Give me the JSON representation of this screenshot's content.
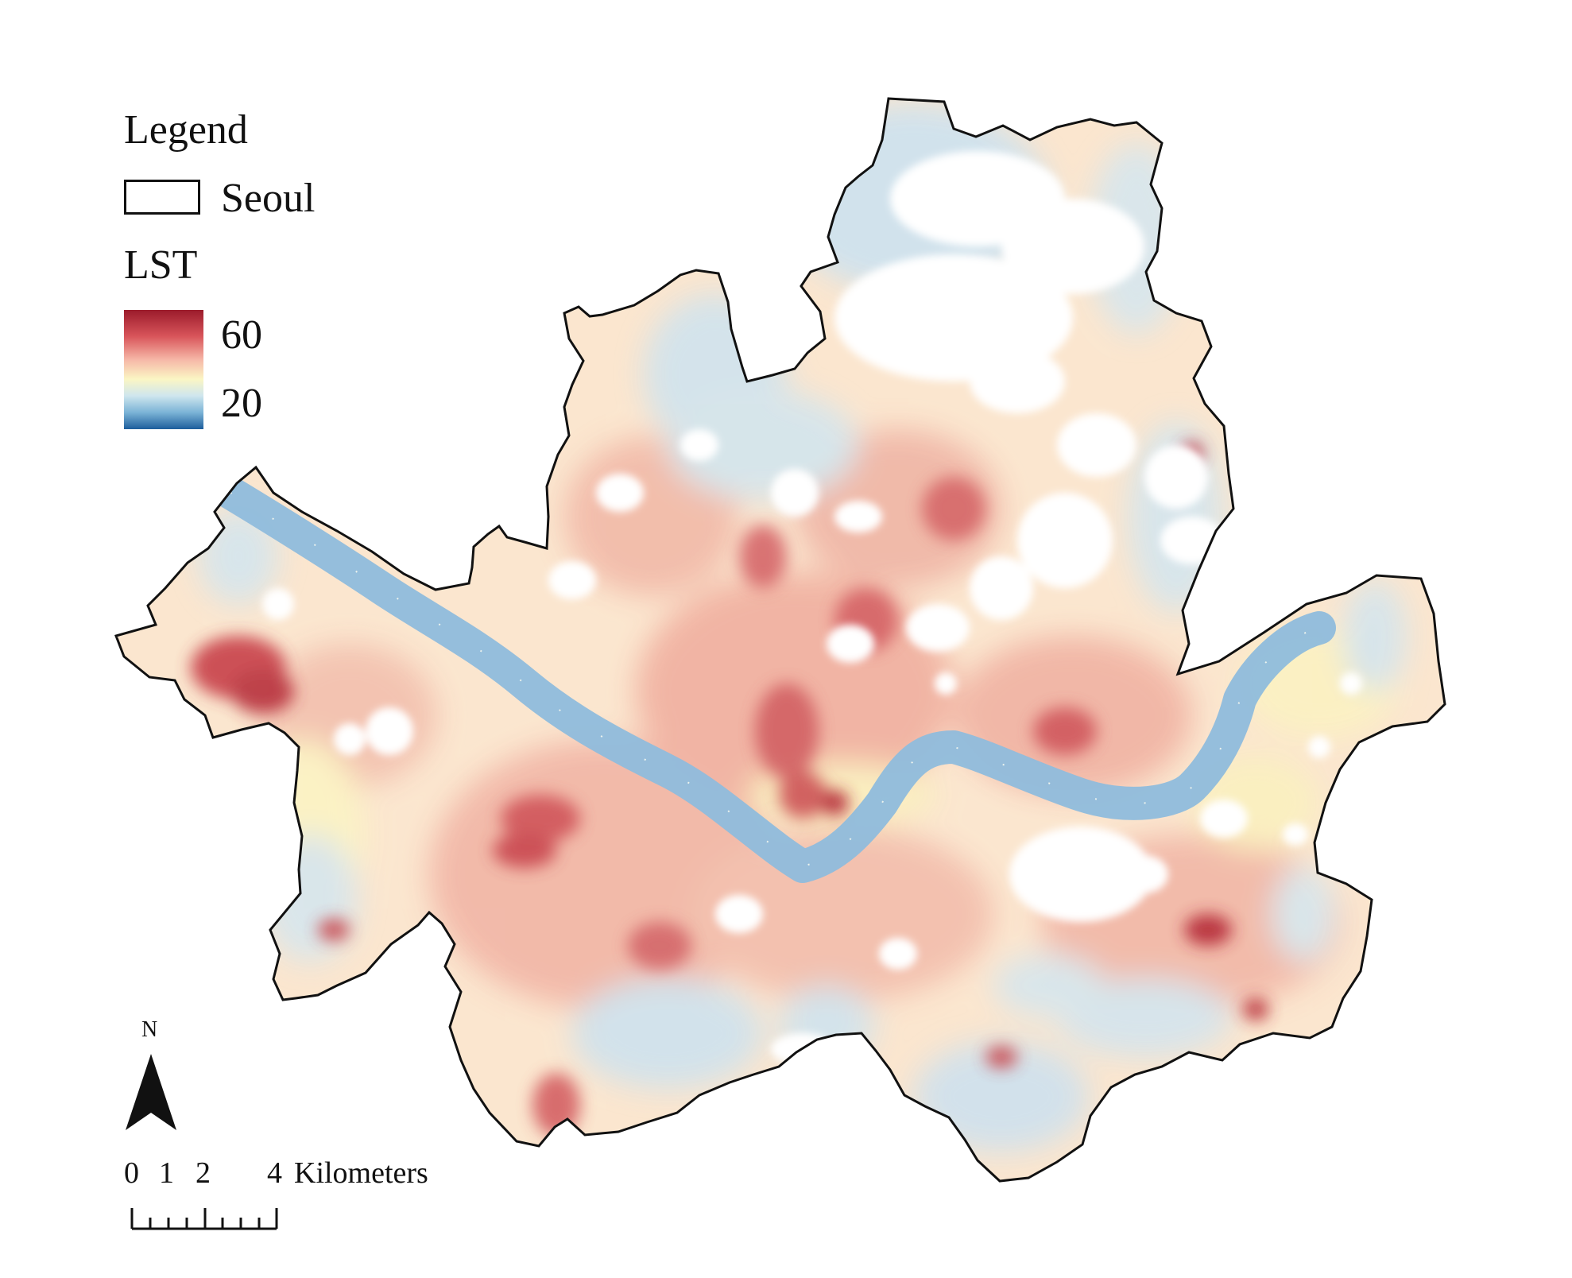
{
  "legend": {
    "title": "Legend",
    "boundary_label": "Seoul",
    "layer_title": "LST",
    "ramp_max": "60",
    "ramp_min": "20",
    "ramp_colors": [
      "#9b1b2b",
      "#d8545a",
      "#f6b9a8",
      "#fbf6c4",
      "#cfe6ee",
      "#7bb3d6",
      "#1d5e9c"
    ]
  },
  "north_arrow": {
    "label": "N"
  },
  "scale_bar": {
    "ticks": [
      "0",
      "1",
      "2",
      "4"
    ],
    "unit": "Kilometers"
  },
  "map": {
    "region": "Seoul",
    "river_color": "#8fbcdc",
    "boundary_color": "#111111"
  }
}
